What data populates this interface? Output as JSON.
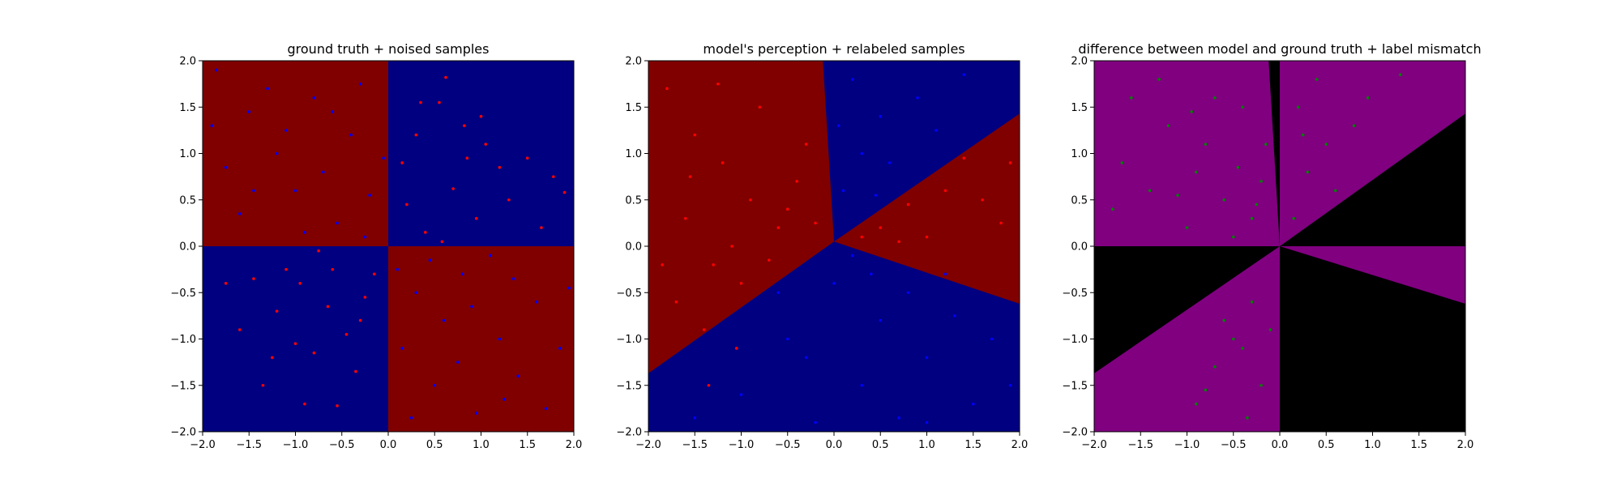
{
  "figure": {
    "background": "#ffffff",
    "colors": {
      "red_region": "#800000",
      "blue_region": "#000080",
      "purple_region": "#800080",
      "black_region": "#000000",
      "red_point": "#ff0000",
      "blue_point": "#0000ff",
      "green_point": "#008000"
    }
  },
  "chart_data": [
    {
      "type": "scatter",
      "title": "ground truth + noised samples",
      "xlabel": "",
      "ylabel": "",
      "xlim": [
        -2.0,
        2.0
      ],
      "ylim": [
        -2.0,
        2.0
      ],
      "xticks": [
        "−2.0",
        "−1.5",
        "−1.0",
        "−0.5",
        "0.0",
        "0.5",
        "1.0",
        "1.5",
        "2.0"
      ],
      "yticks": [
        "−2.0",
        "−1.5",
        "−1.0",
        "−0.5",
        "0.0",
        "0.5",
        "1.0",
        "1.5",
        "2.0"
      ],
      "grid": false,
      "background_regions": [
        {
          "color": "red_region",
          "polygon": [
            [
              -2,
              0
            ],
            [
              0,
              0
            ],
            [
              0,
              2
            ],
            [
              -2,
              2
            ]
          ]
        },
        {
          "color": "blue_region",
          "polygon": [
            [
              0,
              0
            ],
            [
              2,
              0
            ],
            [
              2,
              2
            ],
            [
              0,
              2
            ]
          ]
        },
        {
          "color": "blue_region",
          "polygon": [
            [
              -2,
              -2
            ],
            [
              0,
              -2
            ],
            [
              0,
              0
            ],
            [
              -2,
              0
            ]
          ]
        },
        {
          "color": "red_region",
          "polygon": [
            [
              0,
              -2
            ],
            [
              2,
              -2
            ],
            [
              2,
              0
            ],
            [
              0,
              0
            ]
          ]
        }
      ],
      "series": [
        {
          "color": "red_point",
          "points": [
            [
              0.55,
              1.55
            ],
            [
              0.62,
              1.82
            ],
            [
              0.3,
              1.2
            ],
            [
              0.82,
              1.3
            ],
            [
              1.05,
              1.1
            ],
            [
              1.5,
              0.95
            ],
            [
              1.78,
              0.75
            ],
            [
              0.2,
              0.45
            ],
            [
              0.7,
              0.62
            ],
            [
              0.95,
              0.3
            ],
            [
              1.3,
              0.5
            ],
            [
              1.65,
              0.2
            ],
            [
              0.15,
              0.9
            ],
            [
              0.4,
              0.15
            ],
            [
              1.2,
              0.85
            ],
            [
              0.58,
              0.05
            ],
            [
              1.9,
              0.58
            ],
            [
              0.35,
              1.55
            ],
            [
              1.0,
              1.4
            ],
            [
              0.85,
              0.95
            ],
            [
              -0.6,
              -0.25
            ],
            [
              -0.95,
              -0.4
            ],
            [
              -1.2,
              -0.7
            ],
            [
              -0.45,
              -0.95
            ],
            [
              -1.35,
              -1.5
            ],
            [
              -0.8,
              -1.15
            ],
            [
              -0.25,
              -0.55
            ],
            [
              -1.6,
              -0.9
            ],
            [
              -0.75,
              -0.05
            ],
            [
              -1.1,
              -0.25
            ],
            [
              -0.35,
              -1.35
            ],
            [
              -0.55,
              -1.72
            ],
            [
              -1.45,
              -0.35
            ],
            [
              -0.15,
              -0.3
            ],
            [
              -1.0,
              -1.05
            ],
            [
              -0.65,
              -0.65
            ],
            [
              -1.75,
              -0.4
            ],
            [
              -0.9,
              -1.7
            ],
            [
              -0.3,
              -0.8
            ],
            [
              -1.25,
              -1.2
            ]
          ]
        },
        {
          "color": "blue_point",
          "points": [
            [
              -1.85,
              1.9
            ],
            [
              -1.5,
              1.45
            ],
            [
              -1.2,
              1.0
            ],
            [
              -0.8,
              1.6
            ],
            [
              -0.4,
              1.2
            ],
            [
              -0.2,
              0.55
            ],
            [
              -1.6,
              0.35
            ],
            [
              -1.0,
              0.6
            ],
            [
              -0.55,
              0.25
            ],
            [
              -1.3,
              1.7
            ],
            [
              -0.9,
              0.15
            ],
            [
              -1.75,
              0.85
            ],
            [
              -0.3,
              1.75
            ],
            [
              -0.7,
              0.8
            ],
            [
              -1.1,
              1.25
            ],
            [
              -0.05,
              0.95
            ],
            [
              -1.45,
              0.6
            ],
            [
              -0.25,
              0.1
            ],
            [
              -1.9,
              1.3
            ],
            [
              -0.6,
              1.45
            ],
            [
              0.3,
              -0.5
            ],
            [
              0.8,
              -0.3
            ],
            [
              1.2,
              -1.0
            ],
            [
              0.5,
              -1.5
            ],
            [
              1.6,
              -0.6
            ],
            [
              0.15,
              -1.1
            ],
            [
              0.95,
              -1.8
            ],
            [
              1.4,
              -1.4
            ],
            [
              1.85,
              -1.1
            ],
            [
              0.6,
              -0.8
            ],
            [
              1.1,
              -0.1
            ],
            [
              0.25,
              -1.85
            ],
            [
              1.7,
              -1.75
            ],
            [
              0.75,
              -1.25
            ],
            [
              1.35,
              -0.35
            ],
            [
              0.1,
              -0.25
            ],
            [
              1.95,
              -0.45
            ],
            [
              0.45,
              -0.15
            ],
            [
              1.25,
              -1.65
            ],
            [
              0.9,
              -0.65
            ]
          ]
        }
      ]
    },
    {
      "type": "scatter",
      "title": "model's perception + relabeled samples",
      "xlabel": "",
      "ylabel": "",
      "xlim": [
        -2.0,
        2.0
      ],
      "ylim": [
        -2.0,
        2.0
      ],
      "xticks": [
        "−2.0",
        "−1.5",
        "−1.0",
        "−0.5",
        "0.0",
        "0.5",
        "1.0",
        "1.5",
        "2.0"
      ],
      "yticks": [
        "−2.0",
        "−1.5",
        "−1.0",
        "−0.5",
        "0.0",
        "0.5",
        "1.0",
        "1.5",
        "2.0"
      ],
      "grid": false,
      "background_regions": [
        {
          "color": "blue_region",
          "polygon": [
            [
              -2,
              -2
            ],
            [
              2,
              -2
            ],
            [
              2,
              2
            ],
            [
              -2,
              2
            ]
          ]
        },
        {
          "color": "red_region",
          "polygon": [
            [
              0,
              0.05
            ],
            [
              -0.12,
              2
            ],
            [
              -2,
              2
            ],
            [
              -2,
              -1.37
            ]
          ]
        },
        {
          "color": "red_region",
          "polygon": [
            [
              0,
              0.05
            ],
            [
              2,
              1.43
            ],
            [
              2,
              -0.62
            ]
          ]
        }
      ],
      "series": [
        {
          "color": "red_point",
          "points": [
            [
              -1.8,
              1.7
            ],
            [
              -1.5,
              1.2
            ],
            [
              -1.2,
              0.9
            ],
            [
              -0.9,
              0.5
            ],
            [
              -0.6,
              0.2
            ],
            [
              -1.6,
              0.3
            ],
            [
              -1.3,
              -0.2
            ],
            [
              -1.7,
              -0.6
            ],
            [
              -1.1,
              0.0
            ],
            [
              -0.4,
              0.7
            ],
            [
              -0.8,
              1.5
            ],
            [
              -0.3,
              1.1
            ],
            [
              -1.4,
              -0.9
            ],
            [
              -1.85,
              -0.2
            ],
            [
              -1.0,
              -0.4
            ],
            [
              -0.5,
              0.4
            ],
            [
              -1.25,
              1.75
            ],
            [
              -0.7,
              -0.15
            ],
            [
              -1.55,
              0.75
            ],
            [
              -0.2,
              0.25
            ],
            [
              0.5,
              0.2
            ],
            [
              0.8,
              0.45
            ],
            [
              1.2,
              0.6
            ],
            [
              1.6,
              0.5
            ],
            [
              1.0,
              0.1
            ],
            [
              1.4,
              0.95
            ],
            [
              1.8,
              0.25
            ],
            [
              0.3,
              0.1
            ],
            [
              1.9,
              0.9
            ],
            [
              0.7,
              0.05
            ],
            [
              -1.35,
              -1.5
            ],
            [
              -1.05,
              -1.1
            ]
          ]
        },
        {
          "color": "blue_point",
          "points": [
            [
              0.2,
              1.8
            ],
            [
              0.5,
              1.4
            ],
            [
              0.9,
              1.6
            ],
            [
              0.3,
              1.0
            ],
            [
              0.1,
              0.6
            ],
            [
              0.6,
              0.9
            ],
            [
              1.4,
              1.85
            ],
            [
              0.05,
              1.3
            ],
            [
              0.45,
              0.55
            ],
            [
              1.1,
              1.25
            ],
            [
              -0.5,
              -1.0
            ],
            [
              0.0,
              -0.4
            ],
            [
              0.5,
              -0.8
            ],
            [
              1.0,
              -1.2
            ],
            [
              1.5,
              -1.7
            ],
            [
              -1.0,
              -1.6
            ],
            [
              0.3,
              -1.5
            ],
            [
              0.8,
              -0.5
            ],
            [
              1.7,
              -1.0
            ],
            [
              -0.2,
              -1.9
            ],
            [
              1.2,
              -0.3
            ],
            [
              -0.6,
              -0.5
            ],
            [
              0.2,
              -0.1
            ],
            [
              1.9,
              -1.5
            ],
            [
              -1.5,
              -1.85
            ],
            [
              0.7,
              -1.85
            ],
            [
              1.3,
              -0.75
            ],
            [
              -0.3,
              -1.2
            ],
            [
              0.4,
              -0.3
            ],
            [
              1.0,
              -1.9
            ]
          ]
        }
      ]
    },
    {
      "type": "scatter",
      "title": "difference between model and ground truth + label mismatch",
      "xlabel": "",
      "ylabel": "",
      "xlim": [
        -2.0,
        2.0
      ],
      "ylim": [
        -2.0,
        2.0
      ],
      "xticks": [
        "−2.0",
        "−1.5",
        "−1.0",
        "−0.5",
        "0.0",
        "0.5",
        "1.0",
        "1.5",
        "2.0"
      ],
      "yticks": [
        "−2.0",
        "−1.5",
        "−1.0",
        "−0.5",
        "0.0",
        "0.5",
        "1.0",
        "1.5",
        "2.0"
      ],
      "grid": false,
      "background_regions": [
        {
          "color": "purple_region",
          "polygon": [
            [
              -2,
              -2
            ],
            [
              2,
              -2
            ],
            [
              2,
              2
            ],
            [
              -2,
              2
            ]
          ]
        },
        {
          "color": "black_region",
          "polygon": [
            [
              0,
              0
            ],
            [
              -0.12,
              2
            ],
            [
              0,
              2
            ]
          ]
        },
        {
          "color": "black_region",
          "polygon": [
            [
              0,
              0
            ],
            [
              2,
              1.43
            ],
            [
              2,
              0
            ]
          ]
        },
        {
          "color": "black_region",
          "polygon": [
            [
              0,
              0
            ],
            [
              -2,
              0
            ],
            [
              -2,
              -1.37
            ]
          ]
        },
        {
          "color": "black_region",
          "polygon": [
            [
              0,
              0
            ],
            [
              2,
              -0.62
            ],
            [
              2,
              -2
            ],
            [
              0,
              -2
            ]
          ]
        }
      ],
      "series": [
        {
          "color": "green_point",
          "points": [
            [
              -1.6,
              1.6
            ],
            [
              -1.2,
              1.3
            ],
            [
              -0.9,
              0.8
            ],
            [
              -0.6,
              0.5
            ],
            [
              -0.3,
              0.3
            ],
            [
              -1.4,
              0.6
            ],
            [
              -0.8,
              1.1
            ],
            [
              -0.4,
              1.5
            ],
            [
              -1.7,
              0.9
            ],
            [
              -0.2,
              0.7
            ],
            [
              -1.0,
              0.2
            ],
            [
              -0.5,
              0.1
            ],
            [
              -1.3,
              1.8
            ],
            [
              -0.7,
              1.6
            ],
            [
              -1.8,
              0.4
            ],
            [
              -0.15,
              1.1
            ],
            [
              -1.1,
              0.55
            ],
            [
              -0.45,
              0.85
            ],
            [
              -0.95,
              1.45
            ],
            [
              -0.25,
              0.45
            ],
            [
              0.2,
              1.5
            ],
            [
              0.5,
              1.1
            ],
            [
              0.8,
              1.3
            ],
            [
              0.3,
              0.8
            ],
            [
              0.6,
              0.6
            ],
            [
              1.3,
              1.85
            ],
            [
              0.15,
              0.3
            ],
            [
              0.95,
              1.6
            ],
            [
              0.4,
              1.8
            ],
            [
              0.25,
              1.2
            ],
            [
              -0.3,
              -0.6
            ],
            [
              -0.5,
              -1.0
            ],
            [
              -0.7,
              -1.3
            ],
            [
              -0.2,
              -1.5
            ],
            [
              -0.9,
              -1.7
            ],
            [
              -0.4,
              -1.1
            ],
            [
              -0.6,
              -0.8
            ],
            [
              -0.1,
              -0.9
            ],
            [
              -0.8,
              -1.55
            ],
            [
              -0.35,
              -1.85
            ]
          ]
        }
      ]
    }
  ]
}
